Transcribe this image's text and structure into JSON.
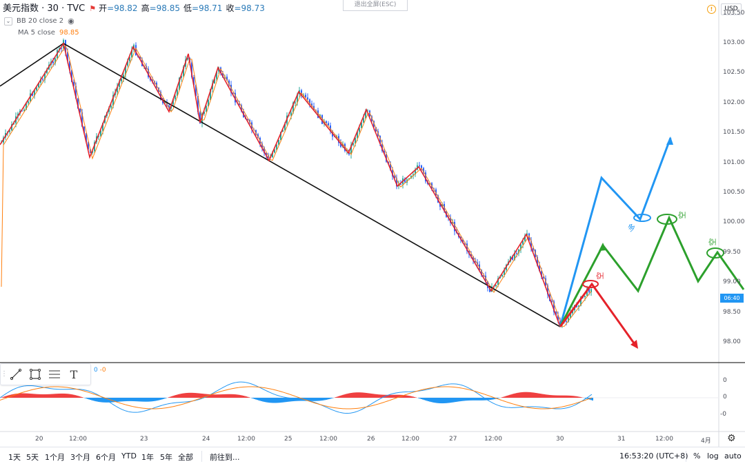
{
  "legend": {
    "symbol": "美元指数 · 30 · TVC",
    "open_label": "开",
    "open_value": "=98.82",
    "high_label": "高",
    "high_value": "=98.85",
    "low_label": "低",
    "low_value": "=98.71",
    "close_label": "收",
    "close_value": "=98.73"
  },
  "indicators": [
    {
      "label": "BB 20 close 2",
      "value": ""
    },
    {
      "label": "MA 5 close",
      "value": "98.85"
    }
  ],
  "exit_fullscreen": "退出全屏(ESC)",
  "currency": "USD",
  "price_axis": [
    "103.50",
    "103.00",
    "102.50",
    "102.00",
    "101.50",
    "101.00",
    "100.50",
    "100.00",
    "99.50",
    "99.00",
    "98.50",
    "98.00"
  ],
  "current_time_badge": "06:40",
  "macd_axis": [
    "0",
    "0",
    "-0"
  ],
  "macd_values": {
    "v1": "0",
    "v2": "-0"
  },
  "time_axis": [
    "20",
    "12:00",
    "23",
    "24",
    "12:00",
    "25",
    "12:00",
    "26",
    "12:00",
    "27",
    "12:00",
    "30",
    "31",
    "12:00",
    "4月"
  ],
  "annotations": {
    "short1": "空",
    "long": "多",
    "short2": "空",
    "short3": "空"
  },
  "bottom_bar": {
    "ranges": [
      "1天",
      "5天",
      "1个月",
      "3个月",
      "6个月",
      "YTD",
      "1年",
      "5年",
      "全部"
    ],
    "goto": "前往到...",
    "clock": "16:53:20 (UTC+8)",
    "percent": "%",
    "log": "log",
    "auto": "auto"
  },
  "colors": {
    "up": "#26a69a",
    "down": "#2962ff",
    "zigzag": "#e5222a",
    "trend": "#111111",
    "blue_arrow": "#2196f3",
    "green_arrow": "#2ca02c",
    "red_arrow": "#e5222a",
    "macd_pos": "#ef4040",
    "macd_neg": "#2196f3"
  }
}
